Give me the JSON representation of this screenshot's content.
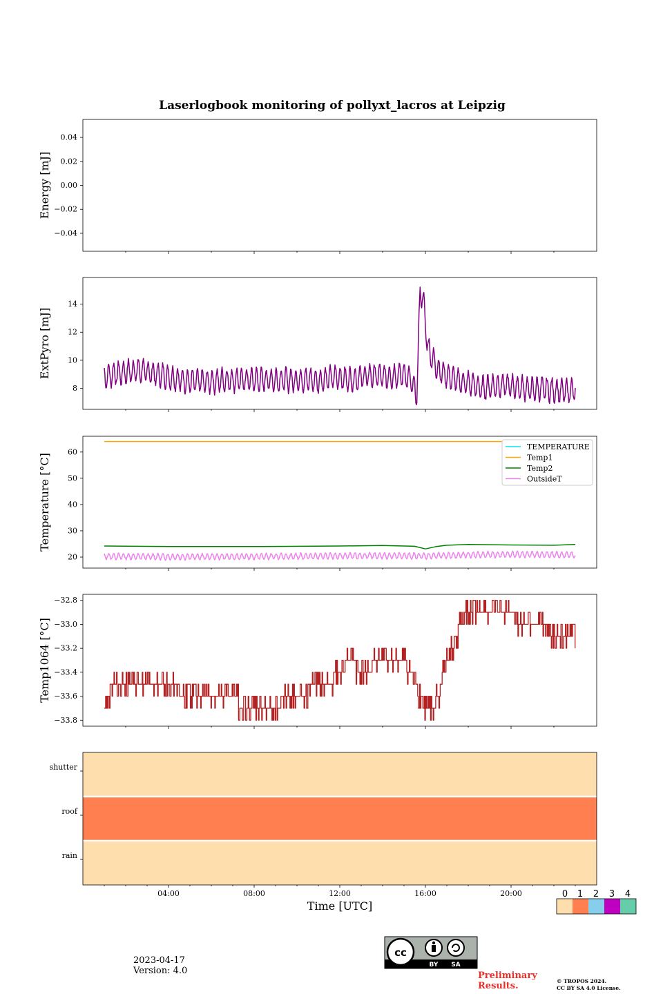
{
  "figure_title": "Laserlogbook monitoring of pollyxt_lacros at Leipzig",
  "date": "2023-04-17",
  "version": "Version: 4.0",
  "preliminary": [
    "Preliminary",
    "Results."
  ],
  "copyright": [
    "© TROPOS 2024.",
    "CC BY SA 4.0 License."
  ],
  "license_badge": {
    "by": "BY",
    "sa": "SA"
  },
  "colors": {
    "extpyro": "#800080",
    "TEMPERATURE": "#00e5ee",
    "Temp1": "#ffa500",
    "Temp2": "#008000",
    "OutsideT": "#ee82ee",
    "temp1064": "#b22222",
    "status_0": "#ffdead",
    "status_1": "#ff7f50",
    "status_2": "#87ceeb",
    "status_3": "#c000c0",
    "status_4": "#66cdaa"
  },
  "status_legend": {
    "values": [
      "0",
      "1",
      "2",
      "3",
      "4"
    ]
  },
  "chart_data": [
    {
      "type": "line",
      "name": "energy",
      "ylabel": "Energy [mJ]",
      "ylim": [
        -0.055,
        0.055
      ],
      "yticks": [
        -0.04,
        -0.02,
        0.0,
        0.02,
        0.04
      ],
      "ytick_labels": [
        "−0.04",
        "−0.02",
        "0.00",
        "0.02",
        "0.04"
      ],
      "series": []
    },
    {
      "type": "line",
      "name": "extpyro",
      "ylabel": "ExtPyro [mJ]",
      "ylim": [
        6.5,
        15.9
      ],
      "yticks": [
        8,
        10,
        12,
        14
      ],
      "ytick_labels": [
        "8",
        "10",
        "12",
        "14"
      ],
      "series": [
        {
          "x": [
            1.0,
            1.4,
            1.8,
            2.2,
            2.6,
            3.0,
            3.4,
            3.8,
            4.2,
            4.6,
            5.0,
            5.4,
            5.8,
            6.2,
            6.6,
            7.0,
            7.4,
            7.8,
            8.2,
            8.6,
            9.0,
            9.4,
            9.8,
            10.2,
            10.6,
            11.0,
            11.4,
            11.8,
            12.2,
            12.6,
            13.0,
            13.4,
            13.8,
            14.2,
            14.6,
            15.0,
            15.3,
            15.6,
            15.75,
            15.9,
            16.1,
            16.3,
            16.6,
            17.0,
            17.4,
            17.8,
            18.2,
            18.6,
            19.0,
            19.4,
            19.8,
            20.2,
            20.6,
            21.0,
            21.4,
            21.8,
            22.2,
            22.6,
            23.0
          ],
          "y": [
            8.8,
            9.0,
            9.1,
            9.2,
            9.3,
            9.2,
            9.0,
            8.9,
            8.7,
            8.6,
            8.5,
            8.5,
            8.5,
            8.5,
            8.6,
            8.6,
            8.6,
            8.6,
            8.6,
            8.6,
            8.6,
            8.6,
            8.6,
            8.6,
            8.6,
            8.5,
            8.7,
            8.8,
            8.7,
            8.6,
            8.8,
            8.9,
            8.9,
            8.8,
            8.9,
            9.0,
            8.6,
            7.5,
            15.0,
            14.3,
            11.0,
            10.2,
            9.3,
            8.9,
            8.6,
            8.4,
            8.3,
            8.0,
            8.1,
            8.2,
            8.2,
            8.1,
            8.0,
            7.9,
            8.0,
            7.9,
            7.8,
            7.8,
            7.9
          ],
          "amplitude": 0.8
        }
      ]
    },
    {
      "type": "line",
      "name": "temperature",
      "ylabel": "Temperature [°C]",
      "ylim": [
        15.8,
        66.0
      ],
      "yticks": [
        20,
        30,
        40,
        50,
        60
      ],
      "ytick_labels": [
        "20",
        "30",
        "40",
        "50",
        "60"
      ],
      "legend": {
        "position": "top-right",
        "labels": [
          "TEMPERATURE",
          "Temp1",
          "Temp2",
          "OutsideT"
        ]
      },
      "series": [
        {
          "name": "TEMPERATURE",
          "x": [],
          "y": []
        },
        {
          "name": "Temp1",
          "x": [
            1.0,
            23.0
          ],
          "y": [
            64.0,
            64.0
          ]
        },
        {
          "name": "Temp2",
          "x": [
            1.0,
            4.0,
            8.0,
            12.0,
            14.0,
            15.5,
            16.0,
            16.5,
            17.0,
            18.0,
            20.0,
            22.0,
            23.0
          ],
          "y": [
            24.2,
            24.0,
            24.0,
            24.2,
            24.4,
            24.1,
            23.1,
            24.0,
            24.5,
            24.8,
            24.6,
            24.5,
            24.8
          ]
        },
        {
          "name": "OutsideT",
          "x": [
            1.0,
            4.0,
            8.0,
            12.0,
            14.0,
            16.0,
            18.0,
            20.0,
            22.0,
            23.0
          ],
          "y": [
            20.3,
            20.1,
            20.2,
            20.4,
            20.5,
            20.4,
            20.8,
            21.0,
            20.9,
            20.8
          ],
          "amplitude": 1.1
        }
      ]
    },
    {
      "type": "line",
      "name": "temp1064",
      "ylabel": "Temp1064 [°C]",
      "ylim": [
        -33.85,
        -32.75
      ],
      "yticks": [
        -33.8,
        -33.6,
        -33.4,
        -33.2,
        -33.0,
        -32.8
      ],
      "ytick_labels": [
        "−33.8",
        "−33.6",
        "−33.4",
        "−33.2",
        "−33.0",
        "−32.8"
      ],
      "series": [
        {
          "x": [
            1.0,
            1.5,
            2.0,
            3.0,
            4.0,
            5.0,
            6.0,
            7.0,
            7.5,
            8.0,
            9.0,
            9.5,
            10.0,
            11.0,
            11.5,
            12.0,
            12.5,
            13.0,
            14.0,
            15.0,
            15.5,
            16.0,
            16.3,
            16.6,
            17.0,
            17.3,
            17.6,
            18.0,
            19.0,
            20.0,
            20.5,
            21.0,
            21.5,
            22.0,
            23.0
          ],
          "y": [
            -33.6,
            -33.5,
            -33.5,
            -33.5,
            -33.5,
            -33.6,
            -33.6,
            -33.6,
            -33.7,
            -33.7,
            -33.7,
            -33.6,
            -33.6,
            -33.5,
            -33.5,
            -33.4,
            -33.3,
            -33.4,
            -33.3,
            -33.3,
            -33.5,
            -33.7,
            -33.7,
            -33.6,
            -33.3,
            -33.2,
            -33.0,
            -32.9,
            -32.9,
            -32.9,
            -33.0,
            -33.0,
            -33.0,
            -33.1,
            -33.1
          ]
        }
      ]
    },
    {
      "type": "heatmap",
      "name": "status",
      "xlabel": "Time [UTC]",
      "rows": [
        "shutter",
        "roof",
        "rain"
      ],
      "values": [
        0,
        1,
        0
      ],
      "xlim": [
        0,
        24
      ],
      "xticks": [
        4,
        8,
        12,
        16,
        20
      ],
      "xtick_labels": [
        "04:00",
        "08:00",
        "12:00",
        "16:00",
        "20:00"
      ]
    }
  ]
}
